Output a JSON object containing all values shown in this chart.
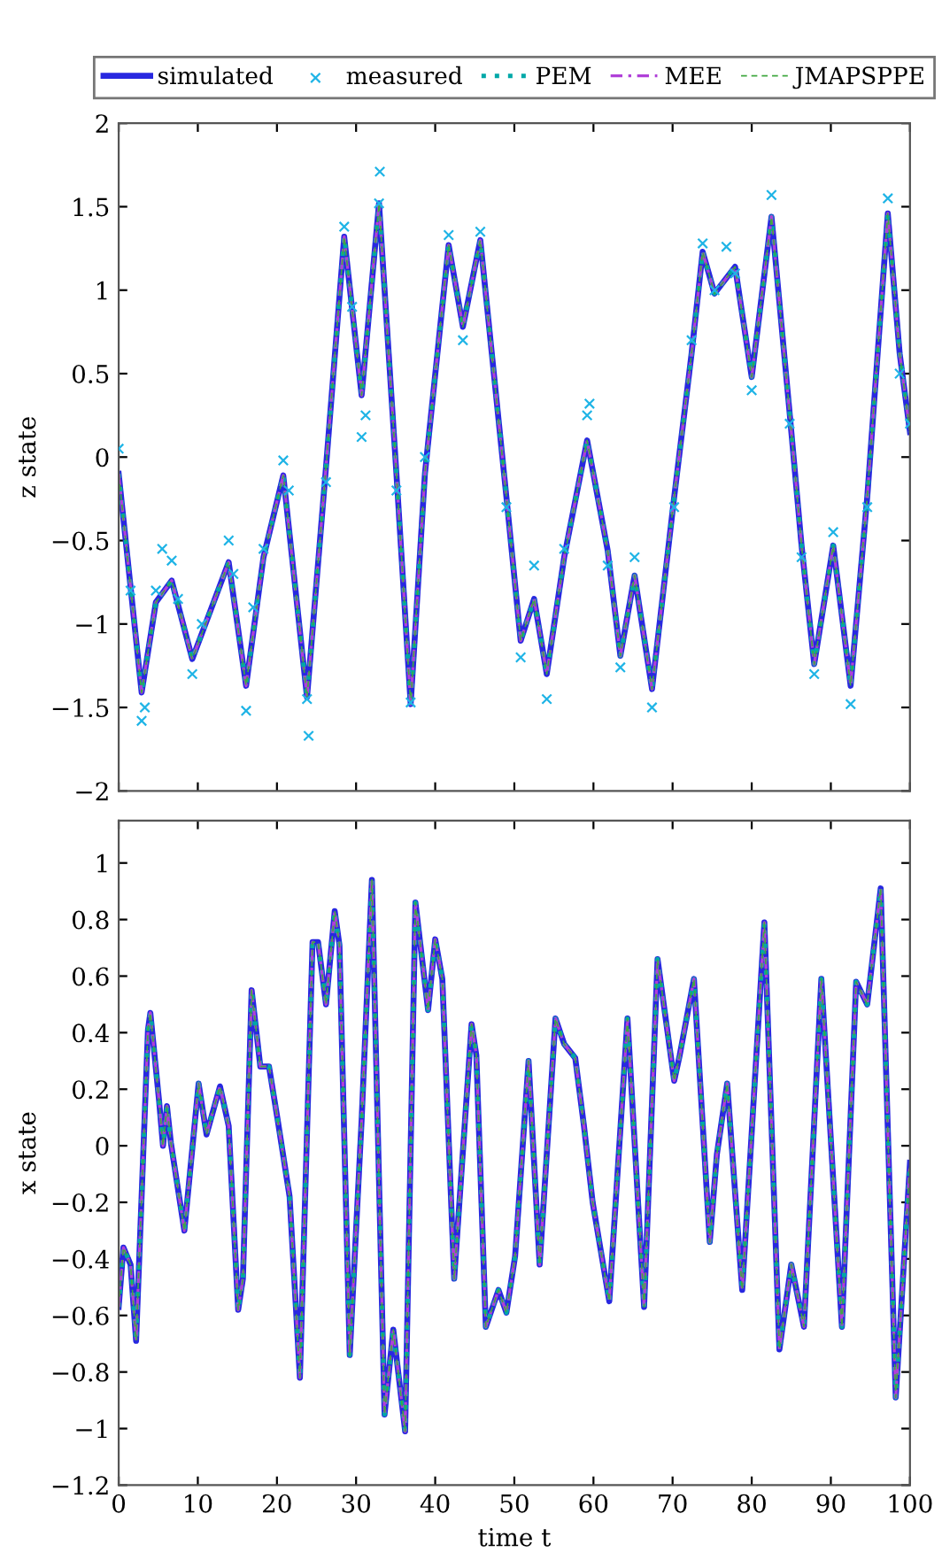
{
  "chart_data": [
    {
      "type": "line",
      "ylabel": "z state",
      "xlim": [
        0,
        100
      ],
      "ylim": [
        -2,
        2
      ],
      "xticks": [
        0,
        10,
        20,
        30,
        40,
        50,
        60,
        70,
        80,
        90,
        100
      ],
      "yticks": [
        {
          "value": -2,
          "label": "−2"
        },
        {
          "value": -1.5,
          "label": "−1.5"
        },
        {
          "value": -1,
          "label": "−1"
        },
        {
          "value": -0.5,
          "label": "−0.5"
        },
        0,
        0.5,
        1,
        1.5,
        2
      ],
      "tick_labels": "y",
      "legend": "top",
      "x": [
        0,
        2.9,
        4.7,
        6.7,
        9.3,
        13.9,
        16.1,
        18.3,
        20.8,
        23.8,
        26.2,
        28.5,
        30.7,
        32.9,
        35.1,
        36.9,
        38.7,
        41.7,
        43.5,
        45.7,
        49.0,
        50.8,
        52.5,
        54.1,
        56.3,
        59.2,
        61.8,
        63.4,
        65.2,
        67.4,
        70.2,
        72.4,
        73.8,
        75.3,
        77.9,
        80.0,
        82.5,
        84.8,
        86.3,
        87.9,
        90.3,
        92.5,
        94.6,
        97.2,
        98.7,
        100
      ],
      "series": [
        {
          "name": "simulated",
          "color": "#2828e0",
          "line_style": "solid",
          "marker": "none",
          "values": [
            -0.1,
            -1.41,
            -0.87,
            -0.74,
            -1.21,
            -0.63,
            -1.37,
            -0.6,
            -0.11,
            -1.44,
            -0.06,
            1.32,
            0.37,
            1.52,
            -0.1,
            -1.48,
            -0.1,
            1.27,
            0.78,
            1.3,
            -0.24,
            -1.1,
            -0.85,
            -1.3,
            -0.6,
            0.1,
            -0.56,
            -1.19,
            -0.71,
            -1.39,
            -0.24,
            0.62,
            1.23,
            0.98,
            1.14,
            0.48,
            1.44,
            0.26,
            -0.53,
            -1.24,
            -0.53,
            -1.37,
            -0.24,
            1.46,
            0.62,
            0.15
          ]
        },
        {
          "name": "measured",
          "type": "scatter",
          "color": "#1fb4e6",
          "marker": "cross",
          "x": [
            0,
            1.5,
            2.9,
            3.3,
            4.7,
            5.5,
            6.7,
            7.5,
            9.3,
            10.5,
            13.9,
            14.5,
            16.1,
            17.0,
            18.3,
            20.8,
            21.5,
            23.8,
            24.0,
            26.2,
            28.5,
            29.5,
            30.7,
            31.2,
            32.9,
            33.0,
            35.1,
            36.9,
            38.7,
            41.7,
            43.5,
            45.7,
            49.0,
            50.8,
            52.5,
            54.1,
            56.3,
            59.2,
            59.5,
            61.8,
            63.4,
            65.2,
            67.4,
            70.2,
            72.4,
            73.8,
            75.3,
            76.8,
            77.9,
            80.0,
            82.5,
            84.8,
            86.3,
            87.9,
            90.3,
            92.5,
            94.6,
            97.2,
            98.7,
            100
          ],
          "values": [
            0.05,
            -0.8,
            -1.58,
            -1.5,
            -0.8,
            -0.55,
            -0.62,
            -0.85,
            -1.3,
            -1.0,
            -0.5,
            -0.7,
            -1.52,
            -0.9,
            -0.55,
            -0.02,
            -0.2,
            -1.45,
            -1.67,
            -0.15,
            1.38,
            0.9,
            0.12,
            0.25,
            1.52,
            1.71,
            -0.2,
            -1.47,
            0.0,
            1.33,
            0.7,
            1.35,
            -0.3,
            -1.2,
            -0.65,
            -1.45,
            -0.55,
            0.25,
            0.32,
            -0.65,
            -1.26,
            -0.6,
            -1.5,
            -0.3,
            0.7,
            1.28,
            1.0,
            1.26,
            1.1,
            0.4,
            1.57,
            0.2,
            -0.6,
            -1.3,
            -0.45,
            -1.48,
            -0.3,
            1.55,
            0.5,
            0.2
          ]
        },
        {
          "name": "PEM",
          "color": "#00a8a8",
          "line_style": "dotted",
          "marker": "none",
          "values": [
            -0.1,
            -1.41,
            -0.87,
            -0.74,
            -1.21,
            -0.63,
            -1.37,
            -0.6,
            -0.11,
            -1.44,
            -0.06,
            1.32,
            0.37,
            1.52,
            -0.1,
            -1.48,
            -0.1,
            1.27,
            0.78,
            1.3,
            -0.24,
            -1.1,
            -0.85,
            -1.3,
            -0.6,
            0.1,
            -0.56,
            -1.19,
            -0.71,
            -1.39,
            -0.24,
            0.62,
            1.23,
            0.98,
            1.14,
            0.48,
            1.44,
            0.26,
            -0.53,
            -1.24,
            -0.53,
            -1.37,
            -0.24,
            1.46,
            0.62,
            0.15
          ]
        },
        {
          "name": "MEE",
          "color": "#b040d8",
          "line_style": "dashdot",
          "marker": "none",
          "values": [
            -0.1,
            -1.41,
            -0.87,
            -0.74,
            -1.21,
            -0.63,
            -1.37,
            -0.6,
            -0.11,
            -1.44,
            -0.06,
            1.32,
            0.37,
            1.52,
            -0.1,
            -1.48,
            -0.1,
            1.27,
            0.78,
            1.3,
            -0.24,
            -1.1,
            -0.85,
            -1.3,
            -0.6,
            0.1,
            -0.56,
            -1.19,
            -0.71,
            -1.39,
            -0.24,
            0.62,
            1.23,
            0.98,
            1.14,
            0.48,
            1.44,
            0.26,
            -0.53,
            -1.24,
            -0.53,
            -1.37,
            -0.24,
            1.46,
            0.62,
            0.15
          ]
        },
        {
          "name": "JMAPSPPE",
          "color": "#40a840",
          "line_style": "dashed",
          "marker": "none",
          "values": [
            -0.1,
            -1.41,
            -0.87,
            -0.74,
            -1.21,
            -0.63,
            -1.37,
            -0.6,
            -0.11,
            -1.44,
            -0.06,
            1.32,
            0.37,
            1.52,
            -0.1,
            -1.48,
            -0.1,
            1.27,
            0.78,
            1.3,
            -0.24,
            -1.1,
            -0.85,
            -1.3,
            -0.6,
            0.1,
            -0.56,
            -1.19,
            -0.71,
            -1.39,
            -0.24,
            0.62,
            1.23,
            0.98,
            1.14,
            0.48,
            1.44,
            0.26,
            -0.53,
            -1.24,
            -0.53,
            -1.37,
            -0.24,
            1.46,
            0.62,
            0.15
          ]
        }
      ]
    },
    {
      "type": "line",
      "xlabel": "time t",
      "ylabel": "x state",
      "xlim": [
        0,
        100
      ],
      "ylim": [
        -1.2,
        1.15
      ],
      "xticks": [
        0,
        10,
        20,
        30,
        40,
        50,
        60,
        70,
        80,
        90,
        100
      ],
      "yticks": [
        {
          "value": -1.2,
          "label": "−1.2"
        },
        {
          "value": -1,
          "label": "−1"
        },
        {
          "value": -0.8,
          "label": "−0.8"
        },
        {
          "value": -0.6,
          "label": "−0.6"
        },
        {
          "value": -0.4,
          "label": "−0.4"
        },
        {
          "value": -0.2,
          "label": "−0.2"
        },
        0,
        0.2,
        0.4,
        0.6,
        0.8,
        1
      ],
      "x": [
        0,
        0.6,
        1.5,
        2.2,
        3.7,
        4.0,
        5.1,
        5.6,
        6.1,
        6.6,
        8.3,
        10.1,
        11.1,
        12.8,
        13.9,
        15.1,
        15.7,
        16.8,
        17.9,
        19.0,
        20.1,
        21.6,
        22.9,
        24.5,
        25.2,
        26.2,
        27.3,
        27.9,
        29.2,
        30.7,
        32.0,
        33.6,
        34.7,
        36.2,
        37.5,
        39.1,
        40.0,
        40.9,
        42.4,
        44.6,
        45.2,
        46.4,
        48.0,
        49.0,
        50.1,
        51.8,
        53.2,
        55.2,
        56.3,
        57.7,
        58.8,
        59.9,
        62.0,
        64.3,
        66.4,
        68.1,
        70.2,
        70.9,
        72.7,
        74.7,
        75.6,
        76.9,
        78.8,
        81.6,
        83.5,
        85.0,
        86.6,
        88.8,
        91.4,
        93.2,
        94.6,
        96.3,
        98.2,
        100
      ],
      "series": [
        {
          "color": "#2828e0",
          "line_style": "solid",
          "marker": "none",
          "values": [
            -0.57,
            -0.36,
            -0.42,
            -0.69,
            0.41,
            0.47,
            0.16,
            0,
            0.14,
            0.01,
            -0.3,
            0.22,
            0.04,
            0.21,
            0.07,
            -0.58,
            -0.47,
            0.55,
            0.28,
            0.28,
            0.09,
            -0.18,
            -0.82,
            0.72,
            0.72,
            0.5,
            0.83,
            0.71,
            -0.74,
            0.09,
            0.94,
            -0.95,
            -0.65,
            -1.01,
            0.86,
            0.48,
            0.73,
            0.59,
            -0.47,
            0.43,
            0.32,
            -0.64,
            -0.51,
            -0.59,
            -0.39,
            0.3,
            -0.42,
            0.45,
            0.36,
            0.31,
            0.07,
            -0.2,
            -0.55,
            0.45,
            -0.57,
            0.66,
            0.23,
            0.32,
            0.59,
            -0.34,
            -0.03,
            0.22,
            -0.51,
            0.79,
            -0.72,
            -0.42,
            -0.64,
            0.59,
            -0.64,
            0.58,
            0.5,
            0.91,
            -0.89,
            -0.06
          ]
        },
        {
          "color": "#00a8a8",
          "line_style": "dotted",
          "marker": "none",
          "values": [
            -0.57,
            -0.36,
            -0.42,
            -0.69,
            0.41,
            0.47,
            0.16,
            0,
            0.14,
            0.01,
            -0.3,
            0.22,
            0.04,
            0.21,
            0.07,
            -0.58,
            -0.47,
            0.55,
            0.28,
            0.28,
            0.09,
            -0.18,
            -0.82,
            0.72,
            0.72,
            0.5,
            0.83,
            0.71,
            -0.74,
            0.09,
            0.94,
            -0.95,
            -0.65,
            -1.01,
            0.86,
            0.48,
            0.73,
            0.59,
            -0.47,
            0.43,
            0.32,
            -0.64,
            -0.51,
            -0.59,
            -0.39,
            0.3,
            -0.42,
            0.45,
            0.36,
            0.31,
            0.07,
            -0.2,
            -0.55,
            0.45,
            -0.57,
            0.66,
            0.23,
            0.32,
            0.59,
            -0.34,
            -0.03,
            0.22,
            -0.51,
            0.79,
            -0.72,
            -0.42,
            -0.64,
            0.59,
            -0.64,
            0.58,
            0.5,
            0.91,
            -0.89,
            -0.06
          ]
        },
        {
          "color": "#b040d8",
          "line_style": "dashdot",
          "marker": "none",
          "values": [
            -0.57,
            -0.36,
            -0.42,
            -0.69,
            0.41,
            0.47,
            0.16,
            0,
            0.14,
            0.01,
            -0.3,
            0.22,
            0.04,
            0.21,
            0.07,
            -0.58,
            -0.47,
            0.55,
            0.28,
            0.28,
            0.09,
            -0.18,
            -0.82,
            0.72,
            0.72,
            0.5,
            0.83,
            0.71,
            -0.74,
            0.09,
            0.94,
            -0.95,
            -0.65,
            -1.01,
            0.86,
            0.48,
            0.73,
            0.59,
            -0.47,
            0.43,
            0.32,
            -0.64,
            -0.51,
            -0.59,
            -0.39,
            0.3,
            -0.42,
            0.45,
            0.36,
            0.31,
            0.07,
            -0.2,
            -0.55,
            0.45,
            -0.57,
            0.66,
            0.23,
            0.32,
            0.59,
            -0.34,
            -0.03,
            0.22,
            -0.51,
            0.79,
            -0.72,
            -0.42,
            -0.64,
            0.59,
            -0.64,
            0.58,
            0.5,
            0.91,
            -0.89,
            -0.06
          ]
        },
        {
          "color": "#40a840",
          "line_style": "dashed",
          "marker": "none",
          "values": [
            -0.57,
            -0.36,
            -0.42,
            -0.69,
            0.41,
            0.47,
            0.16,
            0,
            0.14,
            0.01,
            -0.3,
            0.22,
            0.04,
            0.21,
            0.07,
            -0.58,
            -0.47,
            0.55,
            0.28,
            0.28,
            0.09,
            -0.18,
            -0.82,
            0.72,
            0.72,
            0.5,
            0.83,
            0.71,
            -0.74,
            0.09,
            0.94,
            -0.95,
            -0.65,
            -1.01,
            0.86,
            0.48,
            0.73,
            0.59,
            -0.47,
            0.43,
            0.32,
            -0.64,
            -0.51,
            -0.59,
            -0.39,
            0.3,
            -0.42,
            0.45,
            0.36,
            0.31,
            0.07,
            -0.2,
            -0.55,
            0.45,
            -0.57,
            0.66,
            0.23,
            0.32,
            0.59,
            -0.34,
            -0.03,
            0.22,
            -0.51,
            0.79,
            -0.72,
            -0.42,
            -0.64,
            0.59,
            -0.64,
            0.58,
            0.5,
            0.91,
            -0.89,
            -0.06
          ]
        }
      ]
    }
  ]
}
